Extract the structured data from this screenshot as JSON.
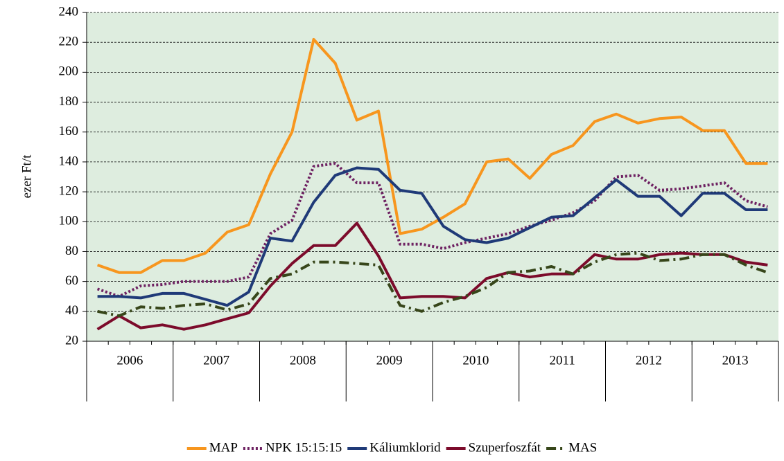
{
  "chart_data": {
    "type": "line",
    "ylabel": "ezer Ft/t",
    "categories": [
      "2006",
      null,
      null,
      null,
      "2007",
      null,
      null,
      null,
      "2008",
      null,
      null,
      null,
      "2009",
      null,
      null,
      null,
      "2010",
      null,
      null,
      null,
      "2011",
      null,
      null,
      null,
      "2012",
      null,
      null,
      null,
      "2013",
      null,
      null,
      null
    ],
    "series": [
      {
        "name": "MAP",
        "color": "#f7961e",
        "style": "solid",
        "values": [
          71,
          66,
          66,
          74,
          74,
          79,
          93,
          98,
          132,
          160,
          222,
          206,
          168,
          174,
          92,
          95,
          103,
          112,
          140,
          142,
          129,
          145,
          151,
          167,
          172,
          166,
          169,
          170,
          161,
          161,
          139,
          139
        ]
      },
      {
        "name": "NPK 15:15:15",
        "color": "#6e2262",
        "style": "dotted",
        "values": [
          55,
          50,
          57,
          58,
          60,
          60,
          60,
          63,
          92,
          101,
          137,
          139,
          126,
          126,
          85,
          85,
          82,
          86,
          89,
          92,
          97,
          101,
          106,
          114,
          130,
          131,
          121,
          122,
          124,
          126,
          114,
          110
        ]
      },
      {
        "name": "Káliumklorid",
        "color": "#1f3a78",
        "style": "solid",
        "values": [
          50,
          50,
          49,
          52,
          52,
          48,
          44,
          53,
          89,
          87,
          113,
          131,
          136,
          135,
          121,
          119,
          97,
          88,
          86,
          89,
          96,
          103,
          104,
          116,
          128,
          117,
          117,
          104,
          119,
          119,
          108,
          108
        ]
      },
      {
        "name": "Szuperfoszfát",
        "color": "#7c0b2b",
        "style": "solid",
        "values": [
          28,
          37,
          29,
          31,
          28,
          31,
          35,
          39,
          57,
          72,
          84,
          84,
          99,
          77,
          49,
          50,
          50,
          49,
          62,
          66,
          63,
          65,
          65,
          78,
          75,
          75,
          78,
          79,
          78,
          78,
          73,
          71
        ]
      },
      {
        "name": "MAS",
        "color": "#37461a",
        "style": "dashdot",
        "values": [
          40,
          37,
          43,
          42,
          44,
          45,
          41,
          45,
          62,
          65,
          73,
          73,
          72,
          71,
          44,
          40,
          46,
          50,
          56,
          66,
          67,
          70,
          65,
          73,
          78,
          79,
          74,
          75,
          78,
          78,
          71,
          66
        ]
      }
    ],
    "ylim": [
      20,
      240
    ],
    "yticks": [
      20,
      40,
      60,
      80,
      100,
      120,
      140,
      160,
      180,
      200,
      220,
      240
    ],
    "grid": true,
    "legend": "bottom"
  }
}
